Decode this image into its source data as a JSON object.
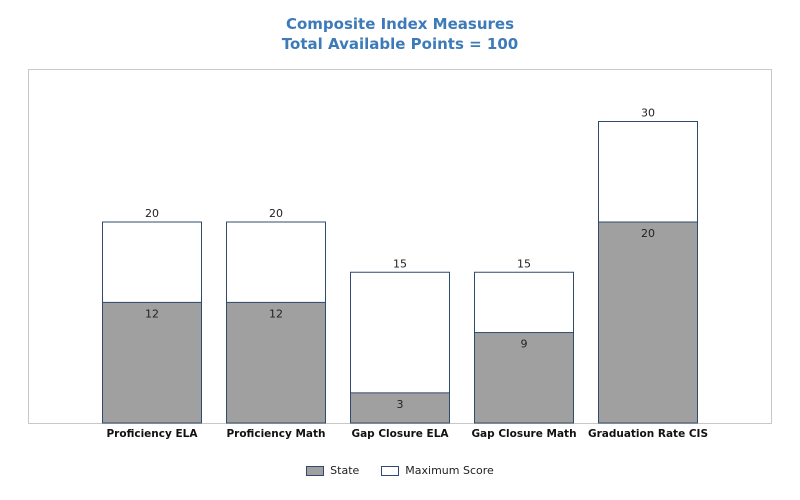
{
  "chart_data": {
    "type": "bar",
    "title": "Composite Index Measures",
    "subtitle": "Total Available Points = 100",
    "categories": [
      "Proficiency ELA",
      "Proficiency Math",
      "Gap Closure ELA",
      "Gap Closure Math",
      "Graduation Rate CIS"
    ],
    "series": [
      {
        "name": "State",
        "values": [
          12,
          12,
          3,
          9,
          20
        ],
        "color": "#a0a0a0"
      },
      {
        "name": "Maximum Score",
        "values": [
          20,
          20,
          15,
          15,
          30
        ],
        "color": "#ffffff"
      }
    ],
    "ylim": [
      0,
      30
    ],
    "grid": false,
    "legend": "bottom",
    "bar_border_color": "#2f4b6b",
    "title_color": "#3d7ab8"
  }
}
